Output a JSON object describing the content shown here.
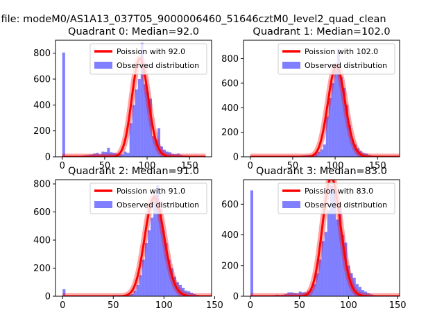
{
  "figure": {
    "suptitle": "a file: modeM0/AS1A13_037T05_9000006460_51646cztM0_level2_quad_clean"
  },
  "chart_data": [
    {
      "type": "bar",
      "title": "Quadrant 0: Median=92.0",
      "xlim": [
        -8,
        176
      ],
      "ylim": [
        0,
        900
      ],
      "xticks": [
        0,
        50,
        100,
        150
      ],
      "yticks": [
        0,
        200,
        400,
        600,
        800
      ],
      "bin_width": 3.3,
      "legend": {
        "placement": "top-right",
        "entries": [
          "Poission with 92.0",
          "Observed distribution"
        ]
      },
      "poisson_mean": 92.0,
      "series": [
        {
          "name": "Observed distribution",
          "kind": "histogram",
          "color": "#7f7fff",
          "bins": [
            [
              0,
              805
            ],
            [
              3.3,
              5
            ],
            [
              6.6,
              5
            ],
            [
              9.9,
              5
            ],
            [
              13.2,
              5
            ],
            [
              16.5,
              5
            ],
            [
              19.8,
              8
            ],
            [
              23.1,
              10
            ],
            [
              26.4,
              12
            ],
            [
              29.7,
              15
            ],
            [
              33,
              18
            ],
            [
              36.3,
              25
            ],
            [
              39.6,
              30
            ],
            [
              42.9,
              20
            ],
            [
              46.2,
              40
            ],
            [
              49.5,
              38
            ],
            [
              52.8,
              70
            ],
            [
              56.1,
              35
            ],
            [
              59.4,
              30
            ],
            [
              62.7,
              25
            ],
            [
              66,
              20
            ],
            [
              69.3,
              20
            ],
            [
              72.6,
              40
            ],
            [
              75.9,
              30
            ],
            [
              79.2,
              260
            ],
            [
              82.5,
              400
            ],
            [
              85.8,
              520
            ],
            [
              89.1,
              600
            ],
            [
              92.4,
              880
            ],
            [
              95.7,
              560
            ],
            [
              99,
              500
            ],
            [
              102.3,
              450
            ],
            [
              105.6,
              160
            ],
            [
              108.9,
              130
            ],
            [
              112.2,
              220
            ],
            [
              115.5,
              80
            ],
            [
              118.8,
              55
            ],
            [
              122.1,
              40
            ],
            [
              125.4,
              35
            ],
            [
              128.7,
              22
            ],
            [
              132,
              20
            ],
            [
              135.3,
              25
            ],
            [
              138.6,
              15
            ],
            [
              141.9,
              10
            ],
            [
              145.2,
              10
            ],
            [
              148.5,
              8
            ],
            [
              151.8,
              5
            ],
            [
              155.1,
              4
            ],
            [
              158.4,
              3
            ],
            [
              161.7,
              2
            ]
          ]
        },
        {
          "name": "Poission with 92.0",
          "kind": "line",
          "color": "#ff0000"
        }
      ]
    },
    {
      "type": "bar",
      "title": "Quadrant 1: Median=102.0",
      "xlim": [
        -8,
        176
      ],
      "ylim": [
        0,
        950
      ],
      "xticks": [
        0,
        50,
        100,
        150
      ],
      "yticks": [
        0,
        200,
        400,
        600,
        800
      ],
      "bin_width": 3.3,
      "legend": {
        "placement": "top-right",
        "entries": [
          "Poission with 102.0",
          "Observed distribution"
        ]
      },
      "poisson_mean": 102.0,
      "series": [
        {
          "name": "Observed distribution",
          "kind": "histogram",
          "color": "#7f7fff",
          "bins": [
            [
              0,
              5
            ],
            [
              3.3,
              2
            ],
            [
              26.4,
              2
            ],
            [
              46.2,
              3
            ],
            [
              52.8,
              5
            ],
            [
              56.1,
              5
            ],
            [
              59.4,
              10
            ],
            [
              62.7,
              12
            ],
            [
              66,
              15
            ],
            [
              69.3,
              15
            ],
            [
              72.6,
              18
            ],
            [
              75.9,
              25
            ],
            [
              79.2,
              40
            ],
            [
              82.5,
              60
            ],
            [
              85.8,
              100
            ],
            [
              89.1,
              330
            ],
            [
              92.4,
              480
            ],
            [
              95.7,
              600
            ],
            [
              99,
              720
            ],
            [
              102.3,
              880
            ],
            [
              105.6,
              650
            ],
            [
              108.9,
              560
            ],
            [
              112.2,
              420
            ],
            [
              115.5,
              260
            ],
            [
              118.8,
              140
            ],
            [
              122.1,
              100
            ],
            [
              125.4,
              70
            ],
            [
              128.7,
              45
            ],
            [
              132,
              30
            ],
            [
              135.3,
              25
            ],
            [
              138.6,
              15
            ],
            [
              141.9,
              10
            ],
            [
              145.2,
              8
            ],
            [
              148.5,
              5
            ],
            [
              151.8,
              3
            ]
          ]
        },
        {
          "name": "Poission with 102.0",
          "kind": "line",
          "color": "#ff0000"
        }
      ]
    },
    {
      "type": "bar",
      "title": "Quadrant 2: Median=91.0",
      "xlim": [
        -7,
        147
      ],
      "ylim": [
        0,
        830
      ],
      "xticks": [
        0,
        50,
        100,
        150
      ],
      "yticks": [
        0,
        200,
        400,
        600,
        800
      ],
      "bin_width": 2.8,
      "legend": {
        "placement": "top-right",
        "entries": [
          "Poission with 91.0",
          "Observed distribution"
        ]
      },
      "poisson_mean": 91.0,
      "series": [
        {
          "name": "Observed distribution",
          "kind": "histogram",
          "color": "#7f7fff",
          "bins": [
            [
              0,
              50
            ],
            [
              2.8,
              5
            ],
            [
              5.6,
              5
            ],
            [
              44.8,
              4
            ],
            [
              50.4,
              8
            ],
            [
              53.2,
              6
            ],
            [
              56,
              5
            ],
            [
              61.6,
              5
            ],
            [
              64.4,
              10
            ],
            [
              67.2,
              15
            ],
            [
              70,
              40
            ],
            [
              72.8,
              80
            ],
            [
              75.6,
              150
            ],
            [
              78.4,
              260
            ],
            [
              81.2,
              380
            ],
            [
              84,
              470
            ],
            [
              86.8,
              560
            ],
            [
              89.6,
              720
            ],
            [
              92.4,
              790
            ],
            [
              95.2,
              620
            ],
            [
              98,
              470
            ],
            [
              100.8,
              380
            ],
            [
              103.6,
              260
            ],
            [
              106.4,
              200
            ],
            [
              109.2,
              140
            ],
            [
              112,
              100
            ],
            [
              114.8,
              80
            ],
            [
              117.6,
              60
            ],
            [
              120.4,
              40
            ],
            [
              123.2,
              35
            ],
            [
              126,
              25
            ],
            [
              128.8,
              15
            ],
            [
              131.6,
              10
            ],
            [
              134.4,
              8
            ],
            [
              137.2,
              5
            ]
          ]
        },
        {
          "name": "Poission with 91.0",
          "kind": "line",
          "color": "#ff0000"
        }
      ]
    },
    {
      "type": "bar",
      "title": "Quadrant 3: Median=83.0",
      "xlim": [
        -7,
        152
      ],
      "ylim": [
        0,
        760
      ],
      "xticks": [
        0,
        50,
        100,
        150
      ],
      "yticks": [
        0,
        200,
        400,
        600
      ],
      "bin_width": 2.9,
      "legend": {
        "placement": "top-right",
        "entries": [
          "Poission with 83.0",
          "Observed distribution"
        ]
      },
      "poisson_mean": 83.0,
      "series": [
        {
          "name": "Observed distribution",
          "kind": "histogram",
          "color": "#7f7fff",
          "bins": [
            [
              0,
              690
            ],
            [
              2.9,
              5
            ],
            [
              5.8,
              5
            ],
            [
              23.2,
              8
            ],
            [
              26.1,
              10
            ],
            [
              29,
              8
            ],
            [
              31.9,
              10
            ],
            [
              34.8,
              15
            ],
            [
              37.7,
              25
            ],
            [
              40.6,
              25
            ],
            [
              43.5,
              22
            ],
            [
              46.4,
              20
            ],
            [
              49.3,
              30
            ],
            [
              52.2,
              25
            ],
            [
              55.1,
              25
            ],
            [
              58,
              35
            ],
            [
              60.9,
              50
            ],
            [
              63.8,
              80
            ],
            [
              66.7,
              150
            ],
            [
              69.6,
              240
            ],
            [
              72.5,
              360
            ],
            [
              75.4,
              420
            ],
            [
              78.3,
              560
            ],
            [
              81.2,
              720
            ],
            [
              84.1,
              680
            ],
            [
              87,
              500
            ],
            [
              89.9,
              580
            ],
            [
              92.8,
              400
            ],
            [
              95.7,
              350
            ],
            [
              98.6,
              200
            ],
            [
              101.5,
              150
            ],
            [
              104.4,
              120
            ],
            [
              107.3,
              80
            ],
            [
              110.2,
              60
            ],
            [
              113.1,
              40
            ],
            [
              116,
              30
            ],
            [
              118.9,
              20
            ],
            [
              121.8,
              12
            ],
            [
              124.7,
              8
            ],
            [
              127.6,
              5
            ],
            [
              130.5,
              3
            ]
          ]
        },
        {
          "name": "Poission with 83.0",
          "kind": "line",
          "color": "#ff0000"
        }
      ]
    }
  ]
}
